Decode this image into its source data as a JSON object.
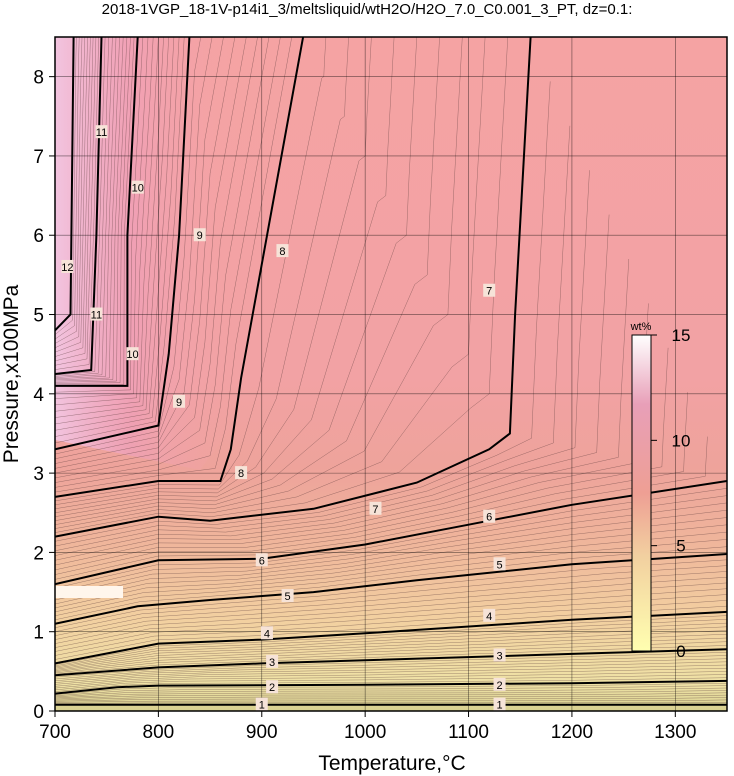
{
  "chart_data": {
    "type": "contour",
    "title": "2018-1VGP_18-1V-p14i1_3/meltsliquid/wtH2O/H2O_7.0_C0.001_3_PT, dz=0.1:",
    "xlabel": "Temperature,°C",
    "ylabel": "Pressure,x100MPa",
    "xlim": [
      700,
      1350
    ],
    "ylim": [
      0,
      8.5
    ],
    "x_ticks": [
      700,
      800,
      900,
      1000,
      1100,
      1200,
      1300
    ],
    "y_ticks": [
      0,
      1,
      2,
      3,
      4,
      5,
      6,
      7,
      8
    ],
    "grid": true,
    "colorbar": {
      "title": "wt%",
      "min": 0,
      "max": 15,
      "ticks": [
        0,
        5,
        10,
        15
      ],
      "colors": [
        "#ffffb0",
        "#f2d0a0",
        "#ee9f94",
        "#e89fb8",
        "#ffffff"
      ]
    },
    "contour_lines": [
      {
        "level": 1,
        "points": [
          [
            700,
            0.08
          ],
          [
            800,
            0.08
          ],
          [
            1000,
            0.08
          ],
          [
            1350,
            0.08
          ]
        ],
        "labels": [
          [
            900,
            0.08
          ],
          [
            1130,
            0.08
          ]
        ]
      },
      {
        "level": 2,
        "points": [
          [
            700,
            0.22
          ],
          [
            760,
            0.3
          ],
          [
            800,
            0.32
          ],
          [
            1000,
            0.33
          ],
          [
            1200,
            0.35
          ],
          [
            1350,
            0.38
          ]
        ],
        "labels": [
          [
            910,
            0.3
          ],
          [
            1130,
            0.33
          ]
        ]
      },
      {
        "level": 3,
        "points": [
          [
            700,
            0.45
          ],
          [
            800,
            0.55
          ],
          [
            900,
            0.6
          ],
          [
            1000,
            0.64
          ],
          [
            1200,
            0.72
          ],
          [
            1350,
            0.78
          ]
        ],
        "labels": [
          [
            910,
            0.62
          ],
          [
            1130,
            0.7
          ]
        ]
      },
      {
        "level": 4,
        "points": [
          [
            700,
            0.6
          ],
          [
            800,
            0.85
          ],
          [
            900,
            0.9
          ],
          [
            1000,
            0.98
          ],
          [
            1200,
            1.15
          ],
          [
            1350,
            1.25
          ]
        ],
        "labels": [
          [
            905,
            0.98
          ],
          [
            1120,
            1.2
          ]
        ]
      },
      {
        "level": 5,
        "points": [
          [
            700,
            1.1
          ],
          [
            780,
            1.32
          ],
          [
            850,
            1.4
          ],
          [
            950,
            1.5
          ],
          [
            1050,
            1.65
          ],
          [
            1200,
            1.85
          ],
          [
            1350,
            1.98
          ]
        ],
        "labels": [
          [
            925,
            1.45
          ],
          [
            1130,
            1.85
          ]
        ]
      },
      {
        "level": 6,
        "points": [
          [
            700,
            1.6
          ],
          [
            800,
            1.9
          ],
          [
            900,
            1.92
          ],
          [
            1000,
            2.1
          ],
          [
            1100,
            2.35
          ],
          [
            1200,
            2.6
          ],
          [
            1350,
            2.9
          ]
        ],
        "labels": [
          [
            900,
            1.9
          ],
          [
            1120,
            2.45
          ]
        ]
      },
      {
        "level": 7,
        "points": [
          [
            700,
            2.2
          ],
          [
            800,
            2.45
          ],
          [
            850,
            2.4
          ],
          [
            950,
            2.55
          ],
          [
            1050,
            2.88
          ],
          [
            1120,
            3.3
          ],
          [
            1140,
            3.5
          ],
          [
            1145,
            5.0
          ],
          [
            1160,
            8.5
          ]
        ],
        "labels": [
          [
            1120,
            5.3
          ],
          [
            1010,
            2.55
          ]
        ]
      },
      {
        "level": 8,
        "points": [
          [
            700,
            2.7
          ],
          [
            800,
            2.9
          ],
          [
            860,
            2.9
          ],
          [
            870,
            3.3
          ],
          [
            880,
            4.2
          ],
          [
            940,
            8.5
          ]
        ],
        "labels": [
          [
            880,
            3.0
          ],
          [
            920,
            5.8
          ]
        ]
      },
      {
        "level": 9,
        "points": [
          [
            700,
            3.3
          ],
          [
            800,
            3.6
          ],
          [
            810,
            4.5
          ],
          [
            820,
            6.0
          ],
          [
            830,
            8.5
          ]
        ],
        "labels": [
          [
            820,
            3.9
          ],
          [
            840,
            6.0
          ]
        ]
      },
      {
        "level": 10,
        "points": [
          [
            700,
            4.1
          ],
          [
            770,
            4.1
          ],
          [
            770,
            6.0
          ],
          [
            780,
            8.5
          ]
        ],
        "labels": [
          [
            775,
            4.5
          ],
          [
            780,
            6.6
          ]
        ]
      },
      {
        "level": 11,
        "points": [
          [
            700,
            4.25
          ],
          [
            735,
            4.3
          ],
          [
            740,
            6.0
          ],
          [
            745,
            8.5
          ]
        ],
        "labels": [
          [
            740,
            5.0
          ],
          [
            745,
            7.3
          ]
        ]
      },
      {
        "level": 12,
        "points": [
          [
            700,
            4.8
          ],
          [
            715,
            5.0
          ],
          [
            718,
            8.5
          ]
        ],
        "labels": [
          [
            712,
            5.6
          ]
        ]
      }
    ]
  }
}
